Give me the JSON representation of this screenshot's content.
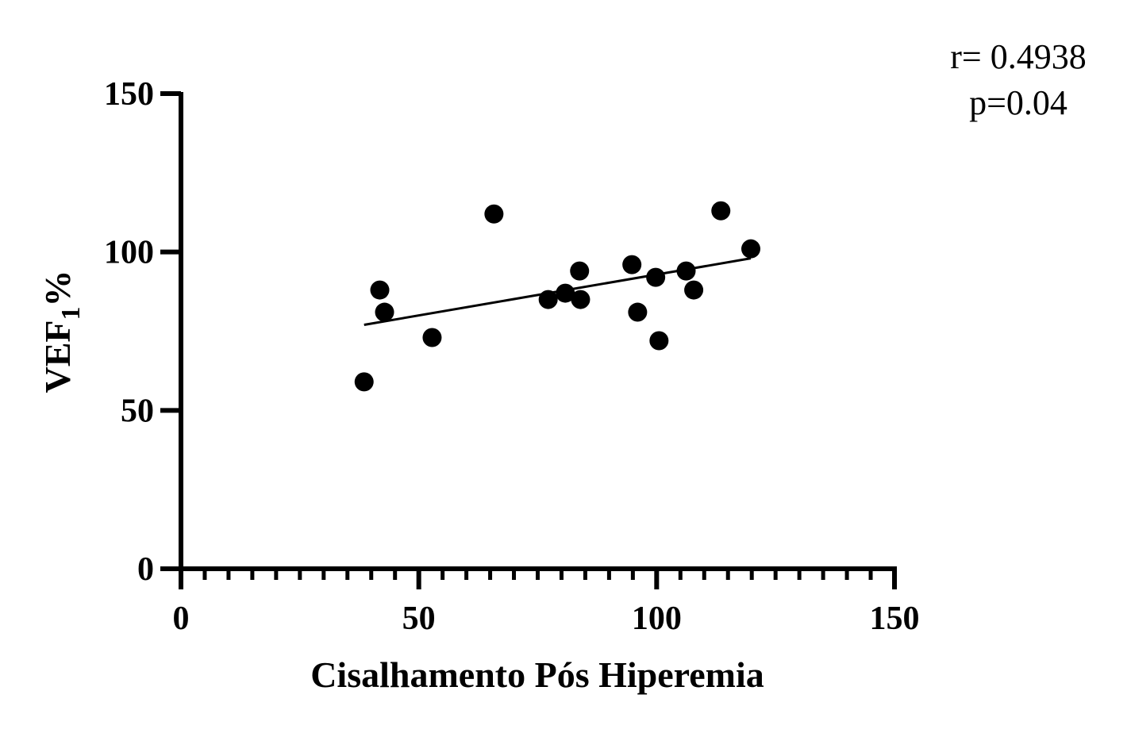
{
  "chart_data": {
    "type": "scatter",
    "title": "",
    "xlabel": "Cisalhamento Pós Hiperemia",
    "ylabel": {
      "main": "VEF",
      "subscript": "1",
      "suffix": "%"
    },
    "xlim": [
      0,
      150
    ],
    "ylim": [
      0,
      150
    ],
    "x_ticks": [
      0,
      50,
      100,
      150
    ],
    "y_ticks": [
      0,
      50,
      100,
      150
    ],
    "x_minor_step": 5,
    "grid": false,
    "legend": "none",
    "annotations": {
      "r": "r= 0.4938",
      "p": "p=0.04"
    },
    "points": [
      {
        "x": 38.5,
        "y": 59
      },
      {
        "x": 41.8,
        "y": 88
      },
      {
        "x": 42.8,
        "y": 81
      },
      {
        "x": 52.8,
        "y": 73
      },
      {
        "x": 65.8,
        "y": 112
      },
      {
        "x": 77.2,
        "y": 85
      },
      {
        "x": 80.8,
        "y": 87
      },
      {
        "x": 83.8,
        "y": 94
      },
      {
        "x": 84.0,
        "y": 85
      },
      {
        "x": 94.8,
        "y": 96
      },
      {
        "x": 96.0,
        "y": 81
      },
      {
        "x": 99.8,
        "y": 92
      },
      {
        "x": 100.5,
        "y": 72
      },
      {
        "x": 106.2,
        "y": 94
      },
      {
        "x": 107.8,
        "y": 88
      },
      {
        "x": 113.5,
        "y": 113
      },
      {
        "x": 119.8,
        "y": 101
      }
    ],
    "regression_line": {
      "x": [
        38.5,
        119.8
      ],
      "y": [
        77,
        98
      ]
    },
    "colors": {
      "points": "#000000",
      "line": "#000000",
      "axis": "#000000"
    }
  }
}
